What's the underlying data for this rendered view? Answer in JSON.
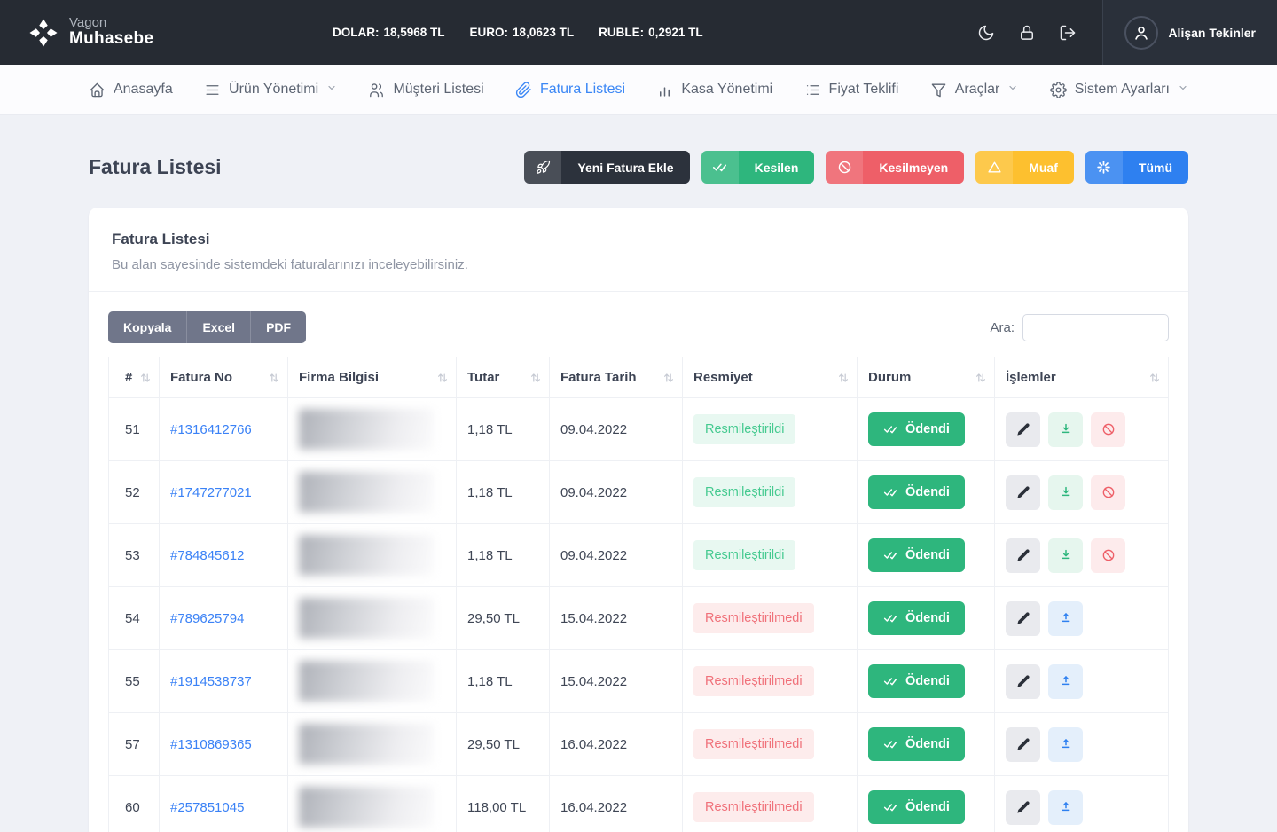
{
  "header": {
    "logo": {
      "line1": "Vagon",
      "line2": "Muhasebe"
    },
    "rates": [
      {
        "label": "DOLAR:",
        "value": "18,5968 TL"
      },
      {
        "label": "EURO:",
        "value": "18,0623 TL"
      },
      {
        "label": "RUBLE:",
        "value": "0,2921 TL"
      }
    ],
    "icons": [
      "moon-icon",
      "lock-icon",
      "logout-icon"
    ],
    "user": {
      "name": "Alişan Tekinler"
    }
  },
  "nav": {
    "items": [
      {
        "label": "Anasayfa",
        "icon": "home-icon",
        "active": false,
        "has_dropdown": false
      },
      {
        "label": "Ürün Yönetimi",
        "icon": "menu-icon",
        "active": false,
        "has_dropdown": true
      },
      {
        "label": "Müşteri Listesi",
        "icon": "users-icon",
        "active": false,
        "has_dropdown": false
      },
      {
        "label": "Fatura Listesi",
        "icon": "paperclip-icon",
        "active": true,
        "has_dropdown": false
      },
      {
        "label": "Kasa Yönetimi",
        "icon": "bar-chart-icon",
        "active": false,
        "has_dropdown": false
      },
      {
        "label": "Fiyat Teklifi",
        "icon": "list-icon",
        "active": false,
        "has_dropdown": false
      },
      {
        "label": "Araçlar",
        "icon": "filter-icon",
        "active": false,
        "has_dropdown": true
      },
      {
        "label": "Sistem Ayarları",
        "icon": "gear-icon",
        "active": false,
        "has_dropdown": true
      }
    ]
  },
  "page": {
    "title": "Fatura Listesi",
    "actions": [
      {
        "label": "Yeni Fatura Ekle",
        "icon": "rocket-icon",
        "color": "#2c323c"
      },
      {
        "label": "Kesilen",
        "icon": "double-check-icon",
        "color": "#2eb67d"
      },
      {
        "label": "Kesilmeyen",
        "icon": "ban-icon",
        "color": "#ee5f68"
      },
      {
        "label": "Muaf",
        "icon": "warning-icon",
        "color": "#fdc02f"
      },
      {
        "label": "Tümü",
        "icon": "asterisk-icon",
        "color": "#2e80f0"
      }
    ]
  },
  "card": {
    "title": "Fatura Listesi",
    "subtitle": "Bu alan sayesinde sistemdeki faturalarınızı inceleyebilirsiniz.",
    "export_buttons": [
      "Kopyala",
      "Excel",
      "PDF"
    ],
    "search_label": "Ara:",
    "search_value": ""
  },
  "table": {
    "headers": [
      "#",
      "Fatura No",
      "Firma Bilgisi",
      "Tutar",
      "Fatura Tarih",
      "Resmiyet",
      "Durum",
      "İşlemler"
    ],
    "rows": [
      {
        "num": "51",
        "invoice_no": "#1316412766",
        "company_blurred": true,
        "amount": "1,18 TL",
        "date": "09.04.2022",
        "formality": "Resmileştirildi",
        "formality_state": "formal",
        "status": "Ödendi",
        "actions": [
          "edit",
          "download",
          "ban"
        ]
      },
      {
        "num": "52",
        "invoice_no": "#1747277021",
        "company_blurred": true,
        "amount": "1,18 TL",
        "date": "09.04.2022",
        "formality": "Resmileştirildi",
        "formality_state": "formal",
        "status": "Ödendi",
        "actions": [
          "edit",
          "download",
          "ban"
        ]
      },
      {
        "num": "53",
        "invoice_no": "#784845612",
        "company_blurred": true,
        "amount": "1,18 TL",
        "date": "09.04.2022",
        "formality": "Resmileştirildi",
        "formality_state": "formal",
        "status": "Ödendi",
        "actions": [
          "edit",
          "download",
          "ban"
        ]
      },
      {
        "num": "54",
        "invoice_no": "#789625794",
        "company_blurred": true,
        "amount": "29,50 TL",
        "date": "15.04.2022",
        "formality": "Resmileştirilmedi",
        "formality_state": "informal",
        "status": "Ödendi",
        "actions": [
          "edit",
          "upload"
        ]
      },
      {
        "num": "55",
        "invoice_no": "#1914538737",
        "company_blurred": true,
        "amount": "1,18 TL",
        "date": "15.04.2022",
        "formality": "Resmileştirilmedi",
        "formality_state": "informal",
        "status": "Ödendi",
        "actions": [
          "edit",
          "upload"
        ]
      },
      {
        "num": "57",
        "invoice_no": "#1310869365",
        "company_blurred": true,
        "amount": "29,50 TL",
        "date": "16.04.2022",
        "formality": "Resmileştirilmedi",
        "formality_state": "informal",
        "status": "Ödendi",
        "actions": [
          "edit",
          "upload"
        ]
      },
      {
        "num": "60",
        "invoice_no": "#257851045",
        "company_blurred": true,
        "amount": "118,00 TL",
        "date": "16.04.2022",
        "formality": "Resmileştirilmedi",
        "formality_state": "informal",
        "status": "Ödendi",
        "actions": [
          "edit",
          "upload"
        ]
      }
    ]
  },
  "colors": {
    "header_dark": "#262b33",
    "green": "#2eb67d",
    "red": "#ee5f68",
    "yellow": "#fdc02f",
    "blue": "#2e80f0",
    "link_blue": "#3b82f6",
    "formal_badge_bg": "#e8f8f1",
    "informal_badge_bg": "#fdecec",
    "export_grey": "#70768a"
  }
}
